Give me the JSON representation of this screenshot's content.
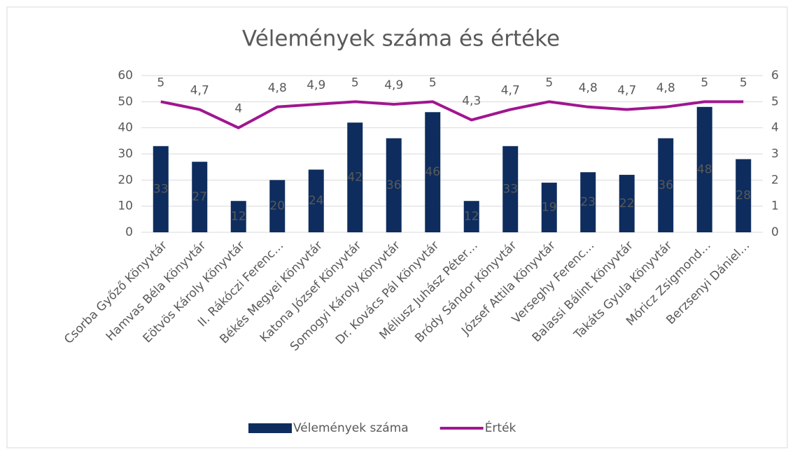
{
  "chart_data": {
    "type": "combo",
    "title": "Vélemények száma és értéke",
    "categories": [
      "Csorba Győző Könyvtár",
      "Hamvas Béla Könyvtár",
      "Eötvös Károly Könyvtár",
      "II. Rákóczi Ferenc…",
      "Békés Megyei Könyvtár",
      "Katona József Könyvtár",
      "Somogyi Károly Könyvtár",
      "Dr. Kovács Pál Könyvtár",
      "Méliusz Juhász Péter…",
      "Bródy Sándor Könyvtár",
      "József Attila Könyvtár",
      "Verseghy Ferenc…",
      "Balassi Bálint Könyvtár",
      "Takáts Gyula Könyvtár",
      "Móricz Zsigmond…",
      "Berzsenyi Dániel…"
    ],
    "series": [
      {
        "name": "Vélemények száma",
        "type": "bar",
        "color": "#0e2d5e",
        "values": [
          33,
          27,
          12,
          20,
          24,
          42,
          36,
          46,
          12,
          33,
          19,
          23,
          22,
          36,
          48,
          28
        ]
      },
      {
        "name": "Érték",
        "type": "line",
        "axis": "y2",
        "color": "#a0168f",
        "values": [
          5,
          4.7,
          4,
          4.8,
          4.9,
          5,
          4.9,
          5,
          4.3,
          4.7,
          5,
          4.8,
          4.7,
          4.8,
          5,
          5
        ],
        "value_labels": [
          "5",
          "4,7",
          "4",
          "4,8",
          "4,9",
          "5",
          "4,9",
          "5",
          "4,3",
          "4,7",
          "5",
          "4,8",
          "4,7",
          "4,8",
          "5",
          "5"
        ]
      }
    ],
    "ylim": [
      0,
      60
    ],
    "yticks": [
      0,
      10,
      20,
      30,
      40,
      50,
      60
    ],
    "y2lim": [
      0,
      6
    ],
    "y2ticks": [
      0,
      1,
      2,
      3,
      4,
      5,
      6
    ],
    "grid": true,
    "legend": "bottom"
  }
}
